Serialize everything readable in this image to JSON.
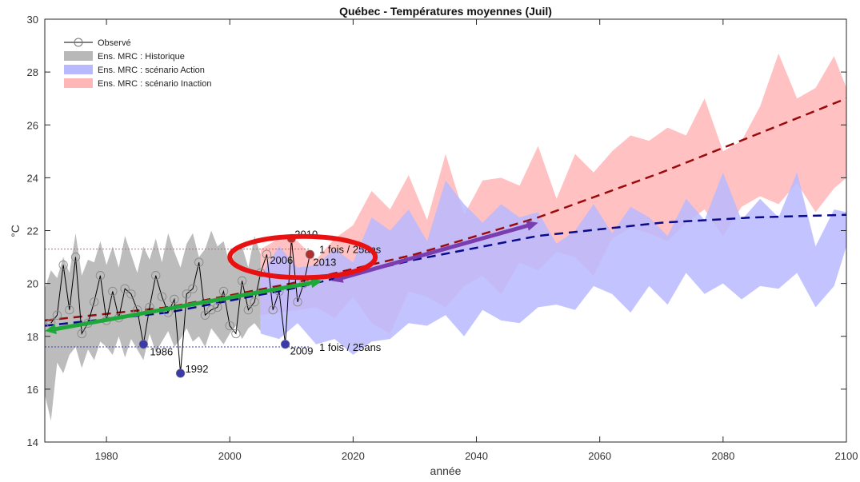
{
  "chart_data": {
    "type": "line",
    "title": "Québec - Températures moyennes (Juil)",
    "xlabel": "année",
    "ylabel": "°C",
    "xlim": [
      1970,
      2100
    ],
    "ylim": [
      14,
      30
    ],
    "x_ticks": [
      1980,
      2000,
      2020,
      2040,
      2060,
      2080,
      2100
    ],
    "y_ticks": [
      14,
      16,
      18,
      20,
      22,
      24,
      26,
      28,
      30
    ],
    "legend_position": "top-left",
    "legend": [
      {
        "label": "Observé",
        "style": "line-marker",
        "color": "#000000"
      },
      {
        "label": "Ens. MRC : Historique",
        "style": "patch",
        "color": "#b8b8b8"
      },
      {
        "label": "Ens. MRC : scénario Action",
        "style": "patch",
        "color": "#b9b9ff"
      },
      {
        "label": "Ens. MRC : scénario Inaction",
        "style": "patch",
        "color": "#ffb6b6"
      }
    ],
    "colors": {
      "observed": "#000000",
      "historic_band": "#b8b8b8",
      "action_band": "#b9b9ff",
      "inaction_band": "#ffb6b6",
      "action_trend": "#0a0a8c",
      "inaction_trend": "#9b0a0a",
      "low_extreme": "#3a3aa8",
      "high_extreme": "#b03030",
      "arrow_green": "#1fa83a",
      "arrow_purple": "#7a3db0",
      "ellipse": "#e81010"
    },
    "observed": {
      "x": [
        1971,
        1972,
        1973,
        1974,
        1975,
        1976,
        1977,
        1978,
        1979,
        1980,
        1981,
        1982,
        1983,
        1984,
        1985,
        1986,
        1987,
        1988,
        1989,
        1990,
        1991,
        1992,
        1993,
        1994,
        1995,
        1996,
        1997,
        1998,
        1999,
        2000,
        2001,
        2002,
        2003,
        2004,
        2005,
        2006,
        2007,
        2008,
        2009,
        2010,
        2011,
        2012,
        2013
      ],
      "y": [
        18.5,
        18.8,
        20.7,
        19.0,
        21.0,
        18.1,
        18.5,
        19.3,
        20.3,
        18.6,
        19.7,
        18.7,
        19.8,
        19.6,
        19.0,
        17.7,
        19.1,
        20.3,
        19.5,
        18.9,
        19.4,
        16.6,
        19.6,
        19.8,
        20.8,
        18.8,
        19.0,
        19.1,
        19.7,
        18.4,
        18.1,
        20.1,
        19.0,
        19.3,
        20.4,
        21.1,
        19.0,
        19.7,
        17.7,
        21.7,
        19.3,
        20.0,
        21.1
      ]
    },
    "historic_band": {
      "x": [
        1970,
        1971,
        1972,
        1973,
        1974,
        1975,
        1976,
        1977,
        1978,
        1979,
        1980,
        1981,
        1982,
        1983,
        1984,
        1985,
        1986,
        1987,
        1988,
        1989,
        1990,
        1991,
        1992,
        1993,
        1994,
        1995,
        1996,
        1997,
        1998,
        1999,
        2000,
        2001,
        2002,
        2003,
        2004,
        2005
      ],
      "low": [
        15.8,
        14.8,
        17.0,
        16.6,
        17.3,
        17.6,
        16.8,
        17.5,
        17.1,
        17.8,
        17.6,
        17.3,
        18.0,
        17.2,
        17.9,
        17.5,
        17.1,
        18.1,
        17.4,
        17.8,
        18.2,
        17.6,
        17.9,
        18.3,
        17.8,
        18.0,
        17.6,
        18.3,
        18.0,
        17.7,
        18.1,
        18.4,
        17.9,
        18.3,
        18.5,
        18.2
      ],
      "high": [
        19.8,
        20.5,
        20.2,
        21.0,
        20.4,
        21.9,
        20.3,
        20.9,
        20.8,
        21.6,
        20.7,
        21.4,
        20.6,
        21.8,
        21.1,
        20.4,
        21.4,
        20.9,
        21.7,
        20.8,
        21.9,
        21.2,
        20.6,
        21.5,
        21.9,
        21.0,
        21.3,
        22.0,
        21.4,
        21.6,
        20.7,
        21.3,
        21.4,
        20.6,
        21.8,
        21.1
      ]
    },
    "inaction_band": {
      "x": [
        2005,
        2008,
        2011,
        2014,
        2017,
        2020,
        2023,
        2026,
        2029,
        2032,
        2035,
        2038,
        2041,
        2044,
        2047,
        2050,
        2053,
        2056,
        2059,
        2062,
        2065,
        2068,
        2071,
        2074,
        2077,
        2080,
        2083,
        2086,
        2089,
        2092,
        2095,
        2098,
        2100
      ],
      "low": [
        18.8,
        18.9,
        19.0,
        19.1,
        18.7,
        19.5,
        18.5,
        18.1,
        19.7,
        19.5,
        19.1,
        19.9,
        20.3,
        19.6,
        20.8,
        20.5,
        21.2,
        21.0,
        20.3,
        21.7,
        22.1,
        21.9,
        21.6,
        22.3,
        22.8,
        21.8,
        22.9,
        23.3,
        23.0,
        23.8,
        22.7,
        23.6,
        24.0
      ],
      "high": [
        21.3,
        21.7,
        21.6,
        20.9,
        21.7,
        22.2,
        23.5,
        22.8,
        24.1,
        22.4,
        24.9,
        22.6,
        23.9,
        24.0,
        23.7,
        25.2,
        23.2,
        24.9,
        24.2,
        25.0,
        25.6,
        25.4,
        25.9,
        25.6,
        27.0,
        25.0,
        25.4,
        26.7,
        28.7,
        27.0,
        27.4,
        28.6,
        27.4
      ]
    },
    "action_band": {
      "x": [
        2005,
        2008,
        2011,
        2014,
        2017,
        2020,
        2023,
        2026,
        2029,
        2032,
        2035,
        2038,
        2041,
        2044,
        2047,
        2050,
        2053,
        2056,
        2059,
        2062,
        2065,
        2068,
        2071,
        2074,
        2077,
        2080,
        2083,
        2086,
        2089,
        2092,
        2095,
        2098,
        2100
      ],
      "low": [
        18.1,
        17.9,
        18.5,
        17.7,
        17.9,
        17.3,
        17.8,
        17.9,
        18.5,
        18.4,
        18.8,
        18.0,
        19.0,
        18.6,
        18.5,
        19.1,
        19.2,
        19.0,
        19.9,
        19.6,
        18.9,
        19.9,
        19.2,
        20.4,
        19.6,
        20.0,
        19.4,
        19.9,
        19.8,
        20.4,
        19.1,
        19.9,
        21.4
      ],
      "high": [
        20.3,
        21.4,
        20.6,
        20.7,
        21.3,
        20.8,
        22.5,
        22.0,
        22.8,
        21.6,
        23.9,
        23.0,
        22.3,
        23.0,
        22.5,
        22.7,
        21.5,
        22.0,
        23.0,
        21.9,
        22.9,
        22.5,
        21.8,
        23.2,
        22.4,
        24.2,
        22.4,
        23.2,
        22.5,
        24.2,
        21.4,
        22.8,
        22.7
      ]
    },
    "inaction_trend": {
      "x": [
        1970,
        1990,
        2010,
        2030,
        2050,
        2070,
        2085,
        2100
      ],
      "y": [
        18.6,
        19.1,
        20.0,
        21.1,
        22.5,
        24.2,
        25.6,
        27.0
      ]
    },
    "action_trend": {
      "x": [
        1970,
        1990,
        2010,
        2030,
        2050,
        2070,
        2085,
        2100
      ],
      "y": [
        18.4,
        18.9,
        19.8,
        20.9,
        21.8,
        22.3,
        22.5,
        22.6
      ]
    },
    "thresholds": [
      {
        "y": 21.3,
        "color": "#e05a40",
        "x_end": 2013
      },
      {
        "y": 17.6,
        "color": "#4040c0",
        "x_end": 2013
      }
    ],
    "highlights": [
      {
        "year": 1986,
        "y": 17.7,
        "label": "1986",
        "color": "#3a3aa8",
        "dx": 8,
        "dy": 14
      },
      {
        "year": 1992,
        "y": 16.6,
        "label": "1992",
        "color": "#3a3aa8",
        "dx": 6,
        "dy": -1
      },
      {
        "year": 2009,
        "y": 17.7,
        "label": "2009",
        "color": "#3a3aa8",
        "dx": 6,
        "dy": 13
      },
      {
        "year": 2010,
        "y": 21.7,
        "label": "2010",
        "color": "#b03030",
        "dx": 4,
        "dy": -1
      },
      {
        "year": 2013,
        "y": 21.1,
        "label": "2013",
        "color": "#b03030",
        "dx": 4,
        "dy": 14
      }
    ],
    "annotations": [
      {
        "text": "2006",
        "x": 2006.5,
        "y": 20.9
      },
      {
        "text": "1 fois / 25ans",
        "x": 2014.5,
        "y": 21.3
      },
      {
        "text": "1 fois / 25ans",
        "x": 2014.5,
        "y": 17.6
      }
    ],
    "arrows": [
      {
        "x1": 1970,
        "y1": 18.2,
        "x2": 2015,
        "y2": 20.1,
        "color": "#1fa83a",
        "double": true
      },
      {
        "x1": 2016.5,
        "y1": 20.1,
        "x2": 2050,
        "y2": 22.3,
        "color": "#7a3db0",
        "double": true
      }
    ],
    "ellipse": {
      "cx": 2011.8,
      "cy": 21.0,
      "rx_years": 11.8,
      "ry_degrees": 0.78,
      "color": "#e81010"
    }
  }
}
